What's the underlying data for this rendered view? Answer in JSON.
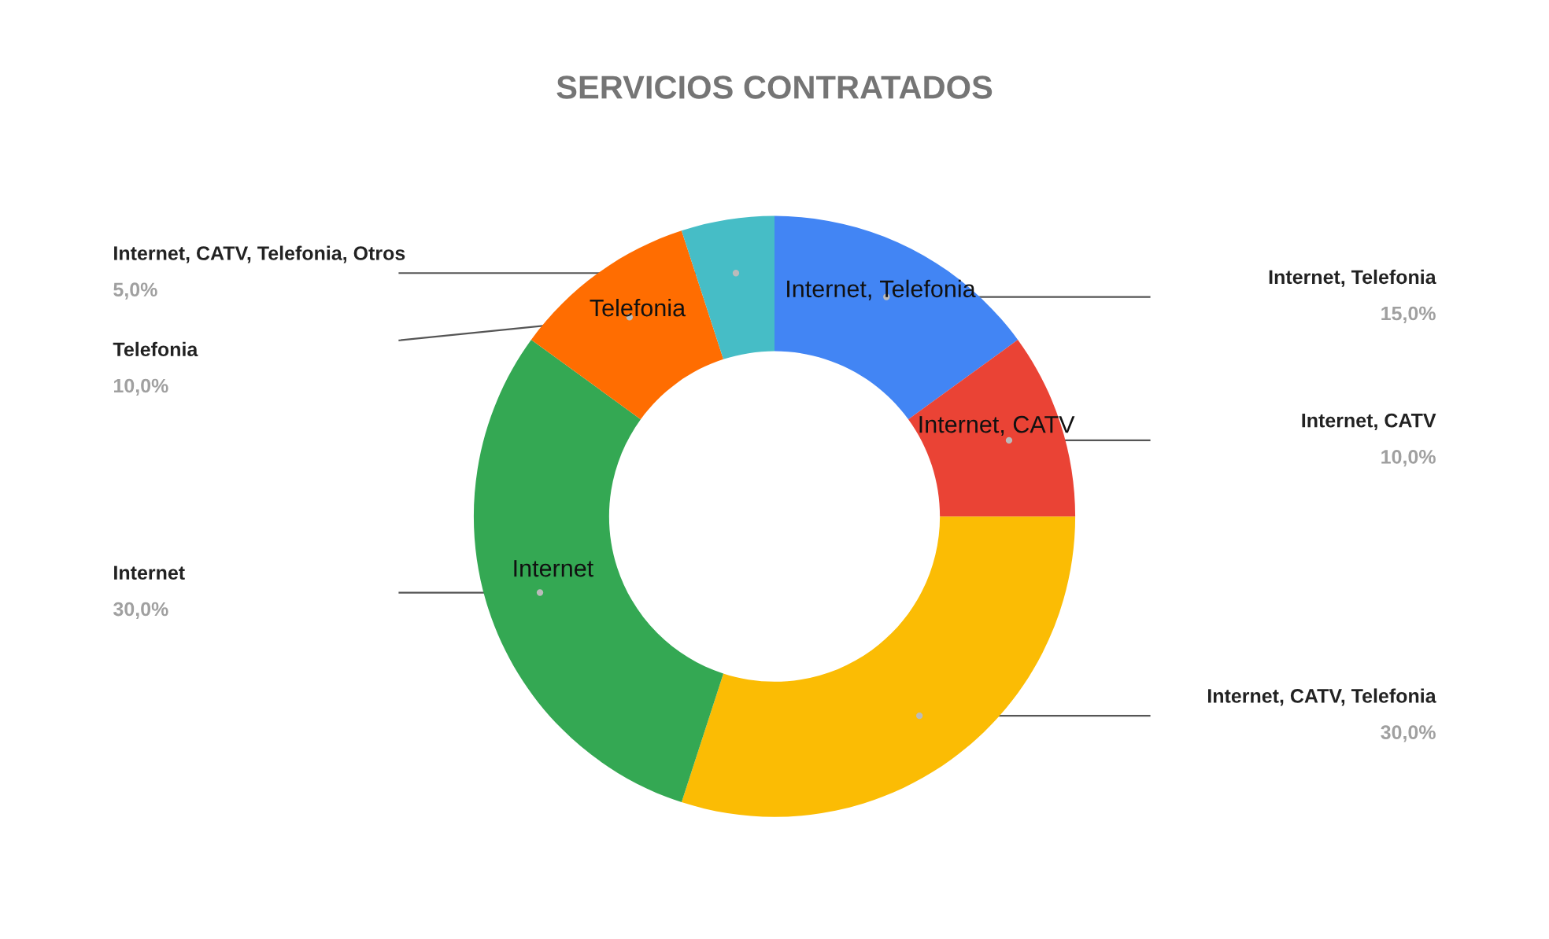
{
  "chart_data": {
    "type": "donut",
    "title": "SERVICIOS CONTRATADOS",
    "categories": [
      "Internet, Telefonia",
      "Internet, CATV",
      "Internet, CATV, Telefonia",
      "Internet",
      "Telefonia",
      "Internet, CATV, Telefonia, Otros"
    ],
    "values": [
      15,
      10,
      30,
      30,
      10,
      5
    ],
    "colors": [
      "#4285f4",
      "#ea4335",
      "#fbbc04",
      "#34a853",
      "#ff6d01",
      "#46bdc6"
    ],
    "value_labels": [
      "15,0%",
      "10,0%",
      "30,0%",
      "30,0%",
      "10,0%",
      "5,0%"
    ],
    "annotations": [
      {
        "text": "Internet, Telefonia",
        "x": "Internet, Telefonia"
      },
      {
        "text": "Internet, CATV",
        "x": "Internet, CATV"
      },
      {
        "text": "Internet",
        "x": "Internet"
      },
      {
        "text": "Telefonia",
        "x": "Telefonia"
      }
    ],
    "legend": false
  }
}
